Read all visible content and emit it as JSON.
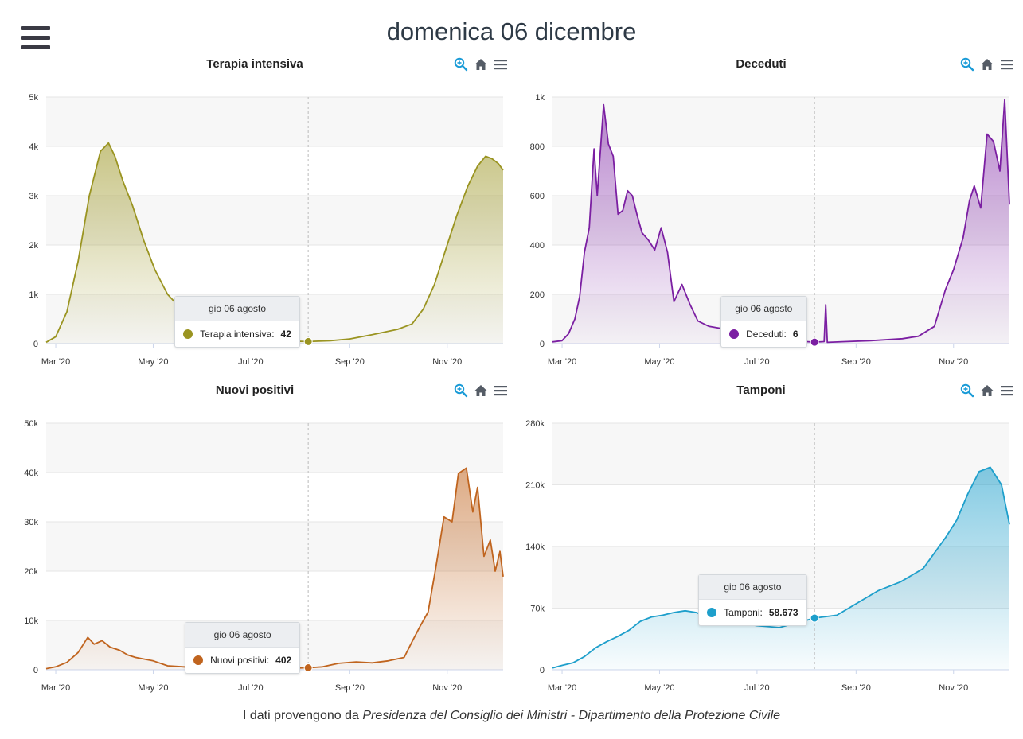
{
  "header": {
    "title": "domenica 06 dicembre",
    "menu_icon": "hamburger-icon"
  },
  "footer": {
    "prefix": "I dati provengono da ",
    "source1": "Presidenza del Consiglio dei Ministri",
    "separator": " - ",
    "source2": "Dipartimento della Protezione Civile"
  },
  "toolbar_icons": [
    "zoom-in-icon",
    "home-icon",
    "menu-icon"
  ],
  "colors": {
    "accent_blue": "#1a9bd7",
    "icon_gray": "#555c66"
  },
  "chart_data": [
    {
      "id": "terapia",
      "type": "area",
      "title": "Terapia intensiva",
      "color": "#9a9421",
      "yticks": [
        0,
        1000,
        2000,
        3000,
        4000,
        5000
      ],
      "ytick_labels": [
        "0",
        "1k",
        "2k",
        "3k",
        "4k",
        "5k"
      ],
      "ylim": [
        0,
        5000
      ],
      "x_labels": [
        "Mar '20",
        "May '20",
        "Jul '20",
        "Sep '20",
        "Nov '20"
      ],
      "x_start": "2020-02-24",
      "x_end": "2020-12-06",
      "x_label_dates": [
        "2020-03-01",
        "2020-05-01",
        "2020-07-01",
        "2020-09-01",
        "2020-11-01"
      ],
      "grid": true,
      "series": [
        {
          "name": "Terapia intensiva",
          "points": [
            [
              "2020-02-24",
              27
            ],
            [
              "2020-03-01",
              140
            ],
            [
              "2020-03-08",
              650
            ],
            [
              "2020-03-15",
              1670
            ],
            [
              "2020-03-22",
              3000
            ],
            [
              "2020-03-29",
              3900
            ],
            [
              "2020-04-03",
              4068
            ],
            [
              "2020-04-07",
              3800
            ],
            [
              "2020-04-12",
              3300
            ],
            [
              "2020-04-18",
              2800
            ],
            [
              "2020-04-25",
              2100
            ],
            [
              "2020-05-02",
              1500
            ],
            [
              "2020-05-10",
              1000
            ],
            [
              "2020-05-20",
              650
            ],
            [
              "2020-06-01",
              400
            ],
            [
              "2020-06-15",
              220
            ],
            [
              "2020-07-01",
              110
            ],
            [
              "2020-07-15",
              60
            ],
            [
              "2020-08-06",
              42
            ],
            [
              "2020-08-20",
              60
            ],
            [
              "2020-09-01",
              95
            ],
            [
              "2020-09-15",
              180
            ],
            [
              "2020-10-01",
              290
            ],
            [
              "2020-10-10",
              400
            ],
            [
              "2020-10-17",
              700
            ],
            [
              "2020-10-24",
              1200
            ],
            [
              "2020-10-31",
              1900
            ],
            [
              "2020-11-07",
              2600
            ],
            [
              "2020-11-14",
              3200
            ],
            [
              "2020-11-20",
              3600
            ],
            [
              "2020-11-25",
              3800
            ],
            [
              "2020-11-29",
              3750
            ],
            [
              "2020-12-03",
              3650
            ],
            [
              "2020-12-06",
              3517
            ]
          ]
        }
      ],
      "tooltip": {
        "date": "gio 06 agosto",
        "label": "Terapia intensiva:",
        "value": "42",
        "x_date": "2020-08-06",
        "y": 42
      }
    },
    {
      "id": "deceduti",
      "type": "area",
      "title": "Deceduti",
      "color": "#7b1fa2",
      "yticks": [
        0,
        200,
        400,
        600,
        800,
        1000
      ],
      "ytick_labels": [
        "0",
        "200",
        "400",
        "600",
        "800",
        "1k"
      ],
      "ylim": [
        0,
        1000
      ],
      "x_labels": [
        "Mar '20",
        "May '20",
        "Jul '20",
        "Sep '20",
        "Nov '20"
      ],
      "x_start": "2020-02-24",
      "x_end": "2020-12-06",
      "x_label_dates": [
        "2020-03-01",
        "2020-05-01",
        "2020-07-01",
        "2020-09-01",
        "2020-11-01"
      ],
      "grid": true,
      "series": [
        {
          "name": "Deceduti",
          "points": [
            [
              "2020-02-24",
              7
            ],
            [
              "2020-03-01",
              12
            ],
            [
              "2020-03-05",
              40
            ],
            [
              "2020-03-09",
              100
            ],
            [
              "2020-03-12",
              190
            ],
            [
              "2020-03-15",
              370
            ],
            [
              "2020-03-18",
              470
            ],
            [
              "2020-03-21",
              790
            ],
            [
              "2020-03-23",
              600
            ],
            [
              "2020-03-27",
              969
            ],
            [
              "2020-03-30",
              810
            ],
            [
              "2020-04-02",
              760
            ],
            [
              "2020-04-05",
              525
            ],
            [
              "2020-04-08",
              540
            ],
            [
              "2020-04-11",
              620
            ],
            [
              "2020-04-14",
              600
            ],
            [
              "2020-04-17",
              520
            ],
            [
              "2020-04-20",
              450
            ],
            [
              "2020-04-24",
              420
            ],
            [
              "2020-04-28",
              380
            ],
            [
              "2020-05-02",
              470
            ],
            [
              "2020-05-06",
              370
            ],
            [
              "2020-05-10",
              170
            ],
            [
              "2020-05-15",
              240
            ],
            [
              "2020-05-20",
              160
            ],
            [
              "2020-05-25",
              92
            ],
            [
              "2020-06-01",
              70
            ],
            [
              "2020-06-10",
              60
            ],
            [
              "2020-06-20",
              40
            ],
            [
              "2020-07-01",
              30
            ],
            [
              "2020-07-15",
              15
            ],
            [
              "2020-08-06",
              6
            ],
            [
              "2020-08-12",
              8
            ],
            [
              "2020-08-13",
              158
            ],
            [
              "2020-08-14",
              5
            ],
            [
              "2020-08-25",
              8
            ],
            [
              "2020-09-10",
              12
            ],
            [
              "2020-09-30",
              20
            ],
            [
              "2020-10-10",
              30
            ],
            [
              "2020-10-20",
              70
            ],
            [
              "2020-10-27",
              220
            ],
            [
              "2020-11-01",
              300
            ],
            [
              "2020-11-07",
              430
            ],
            [
              "2020-11-11",
              580
            ],
            [
              "2020-11-14",
              640
            ],
            [
              "2020-11-18",
              550
            ],
            [
              "2020-11-22",
              850
            ],
            [
              "2020-11-26",
              820
            ],
            [
              "2020-11-30",
              700
            ],
            [
              "2020-12-03",
              990
            ],
            [
              "2020-12-06",
              564
            ]
          ]
        }
      ],
      "tooltip": {
        "date": "gio 06 agosto",
        "label": "Deceduti:",
        "value": "6",
        "x_date": "2020-08-06",
        "y": 6
      }
    },
    {
      "id": "nuovi",
      "type": "area",
      "title": "Nuovi positivi",
      "color": "#c0641e",
      "yticks": [
        0,
        10000,
        20000,
        30000,
        40000,
        50000
      ],
      "ytick_labels": [
        "0",
        "10k",
        "20k",
        "30k",
        "40k",
        "50k"
      ],
      "ylim": [
        0,
        50000
      ],
      "x_labels": [
        "Mar '20",
        "May '20",
        "Jul '20",
        "Sep '20",
        "Nov '20"
      ],
      "x_start": "2020-02-24",
      "x_end": "2020-12-06",
      "x_label_dates": [
        "2020-03-01",
        "2020-05-01",
        "2020-07-01",
        "2020-09-01",
        "2020-11-01"
      ],
      "grid": true,
      "series": [
        {
          "name": "Nuovi positivi",
          "points": [
            [
              "2020-02-24",
              221
            ],
            [
              "2020-03-01",
              600
            ],
            [
              "2020-03-08",
              1500
            ],
            [
              "2020-03-15",
              3500
            ],
            [
              "2020-03-21",
              6557
            ],
            [
              "2020-03-25",
              5200
            ],
            [
              "2020-03-30",
              5900
            ],
            [
              "2020-04-04",
              4600
            ],
            [
              "2020-04-10",
              3950
            ],
            [
              "2020-04-15",
              3000
            ],
            [
              "2020-04-20",
              2500
            ],
            [
              "2020-05-01",
              1800
            ],
            [
              "2020-05-10",
              800
            ],
            [
              "2020-05-20",
              600
            ],
            [
              "2020-06-01",
              300
            ],
            [
              "2020-06-15",
              300
            ],
            [
              "2020-07-01",
              200
            ],
            [
              "2020-07-15",
              230
            ],
            [
              "2020-08-06",
              402
            ],
            [
              "2020-08-15",
              600
            ],
            [
              "2020-08-25",
              1300
            ],
            [
              "2020-09-05",
              1600
            ],
            [
              "2020-09-15",
              1400
            ],
            [
              "2020-09-25",
              1800
            ],
            [
              "2020-10-05",
              2500
            ],
            [
              "2020-10-10",
              5700
            ],
            [
              "2020-10-15",
              8800
            ],
            [
              "2020-10-20",
              11700
            ],
            [
              "2020-10-25",
              21000
            ],
            [
              "2020-10-30",
              31000
            ],
            [
              "2020-11-04",
              30000
            ],
            [
              "2020-11-08",
              39800
            ],
            [
              "2020-11-13",
              40900
            ],
            [
              "2020-11-17",
              32000
            ],
            [
              "2020-11-20",
              37000
            ],
            [
              "2020-11-24",
              23000
            ],
            [
              "2020-11-28",
              26300
            ],
            [
              "2020-12-01",
              20000
            ],
            [
              "2020-12-04",
              24000
            ],
            [
              "2020-12-06",
              18887
            ]
          ]
        }
      ],
      "tooltip": {
        "date": "gio 06 agosto",
        "label": "Nuovi positivi:",
        "value": "402",
        "x_date": "2020-08-06",
        "y": 402
      }
    },
    {
      "id": "tamponi",
      "type": "area",
      "title": "Tamponi",
      "color": "#1e9fcb",
      "yticks": [
        0,
        70000,
        140000,
        210000,
        280000
      ],
      "ytick_labels": [
        "0",
        "70k",
        "140k",
        "210k",
        "280k"
      ],
      "ylim": [
        0,
        280000
      ],
      "x_labels": [
        "Mar '20",
        "May '20",
        "Jul '20",
        "Sep '20",
        "Nov '20"
      ],
      "x_start": "2020-02-24",
      "x_end": "2020-12-06",
      "x_label_dates": [
        "2020-03-01",
        "2020-05-01",
        "2020-07-01",
        "2020-09-01",
        "2020-11-01"
      ],
      "grid": true,
      "series": [
        {
          "name": "Tamponi",
          "points": [
            [
              "2020-02-24",
              2000
            ],
            [
              "2020-03-01",
              5000
            ],
            [
              "2020-03-08",
              8000
            ],
            [
              "2020-03-15",
              15000
            ],
            [
              "2020-03-22",
              25000
            ],
            [
              "2020-03-29",
              32000
            ],
            [
              "2020-04-05",
              38000
            ],
            [
              "2020-04-12",
              45000
            ],
            [
              "2020-04-19",
              55000
            ],
            [
              "2020-04-26",
              60000
            ],
            [
              "2020-05-03",
              62000
            ],
            [
              "2020-05-10",
              65000
            ],
            [
              "2020-05-17",
              67000
            ],
            [
              "2020-05-24",
              65000
            ],
            [
              "2020-05-31",
              60000
            ],
            [
              "2020-06-15",
              55000
            ],
            [
              "2020-07-01",
              50000
            ],
            [
              "2020-07-15",
              48000
            ],
            [
              "2020-08-06",
              58673
            ],
            [
              "2020-08-20",
              62000
            ],
            [
              "2020-09-01",
              75000
            ],
            [
              "2020-09-15",
              90000
            ],
            [
              "2020-09-29",
              100000
            ],
            [
              "2020-10-13",
              115000
            ],
            [
              "2020-10-27",
              150000
            ],
            [
              "2020-11-03",
              170000
            ],
            [
              "2020-11-10",
              200000
            ],
            [
              "2020-11-17",
              225000
            ],
            [
              "2020-11-24",
              230000
            ],
            [
              "2020-12-01",
              210000
            ],
            [
              "2020-12-06",
              165000
            ]
          ]
        }
      ],
      "tooltip": {
        "date": "gio 06 agosto",
        "label": "Tamponi:",
        "value": "58.673",
        "x_date": "2020-08-06",
        "y": 58673
      }
    }
  ]
}
